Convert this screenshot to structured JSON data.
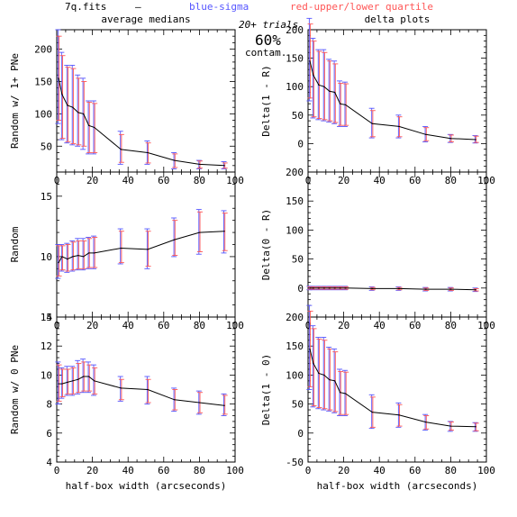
{
  "header": {
    "file": "7q.fits",
    "dash": "—",
    "blue_label": "blue-sigma",
    "red_label": "red-upper/lower quartile",
    "trials": "20+ trials",
    "contam_pct": "60%",
    "contam_word": "contam."
  },
  "colors": {
    "line": "#000000",
    "sigma": "#5555ff",
    "quartile": "#ff5555",
    "frame": "#000000"
  },
  "chart_data": [
    {
      "type": "line",
      "panel": "left-top",
      "title": "average medians",
      "xlabel": "",
      "ylabel": "Random w/ 1+ PNe",
      "xlim": [
        0,
        100
      ],
      "ylim": [
        10,
        230
      ],
      "xticks": [
        0,
        20,
        40,
        60,
        80,
        100
      ],
      "yticks": [
        50,
        100,
        150,
        200
      ],
      "x": [
        1,
        3,
        6,
        9,
        12,
        15,
        18,
        21,
        36,
        51,
        66,
        80,
        94
      ],
      "y": [
        155,
        130,
        113,
        110,
        102,
        100,
        82,
        79,
        45,
        40,
        28,
        22,
        20
      ],
      "sigma": [
        [
          85,
          230
        ],
        [
          60,
          195
        ],
        [
          55,
          175
        ],
        [
          52,
          175
        ],
        [
          50,
          160
        ],
        [
          45,
          155
        ],
        [
          38,
          120
        ],
        [
          38,
          120
        ],
        [
          22,
          73
        ],
        [
          22,
          58
        ],
        [
          15,
          40
        ],
        [
          15,
          28
        ],
        [
          15,
          26
        ]
      ],
      "quartile": [
        [
          90,
          220
        ],
        [
          62,
          190
        ],
        [
          57,
          172
        ],
        [
          54,
          170
        ],
        [
          52,
          155
        ],
        [
          50,
          150
        ],
        [
          40,
          118
        ],
        [
          40,
          116
        ],
        [
          25,
          68
        ],
        [
          24,
          55
        ],
        [
          17,
          38
        ],
        [
          16,
          27
        ],
        [
          16,
          24
        ]
      ]
    },
    {
      "type": "line",
      "panel": "right-top",
      "title": "delta plots",
      "xlabel": "",
      "ylabel": "Delta(1 - R)",
      "xlim": [
        0,
        100
      ],
      "ylim": [
        -50,
        200
      ],
      "xticks": [
        0,
        20,
        40,
        60,
        80,
        100
      ],
      "yticks": [
        0,
        50,
        100,
        150,
        200
      ],
      "x": [
        1,
        3,
        6,
        9,
        12,
        15,
        18,
        21,
        36,
        51,
        66,
        80,
        94
      ],
      "y": [
        145,
        120,
        103,
        100,
        92,
        90,
        70,
        68,
        35,
        30,
        16,
        9,
        7
      ],
      "sigma": [
        [
          75,
          220
        ],
        [
          45,
          185
        ],
        [
          42,
          165
        ],
        [
          40,
          165
        ],
        [
          38,
          148
        ],
        [
          35,
          145
        ],
        [
          30,
          110
        ],
        [
          30,
          108
        ],
        [
          10,
          62
        ],
        [
          10,
          50
        ],
        [
          3,
          30
        ],
        [
          2,
          16
        ],
        [
          1,
          14
        ]
      ],
      "quartile": [
        [
          80,
          210
        ],
        [
          47,
          180
        ],
        [
          44,
          162
        ],
        [
          42,
          160
        ],
        [
          40,
          145
        ],
        [
          37,
          140
        ],
        [
          32,
          106
        ],
        [
          32,
          105
        ],
        [
          12,
          58
        ],
        [
          12,
          47
        ],
        [
          5,
          28
        ],
        [
          3,
          15
        ],
        [
          2,
          13
        ]
      ]
    },
    {
      "type": "line",
      "panel": "left-middle",
      "title": "",
      "xlabel": "",
      "ylabel": "Random",
      "xlim": [
        0,
        100
      ],
      "ylim": [
        5,
        17
      ],
      "xticks": [
        0,
        20,
        40,
        60,
        80,
        100
      ],
      "yticks": [
        5,
        10,
        15
      ],
      "x": [
        1,
        3,
        6,
        9,
        12,
        15,
        18,
        21,
        36,
        51,
        66,
        80,
        94
      ],
      "y": [
        9.5,
        10.0,
        9.8,
        10.0,
        10.1,
        10.0,
        10.3,
        10.3,
        10.7,
        10.6,
        11.4,
        12.0,
        12.1
      ],
      "sigma": [
        [
          8.2,
          11.0
        ],
        [
          8.8,
          11.0
        ],
        [
          8.7,
          11.1
        ],
        [
          8.8,
          11.3
        ],
        [
          8.9,
          11.5
        ],
        [
          8.9,
          11.5
        ],
        [
          9.0,
          11.6
        ],
        [
          9.0,
          11.7
        ],
        [
          9.4,
          12.3
        ],
        [
          9.0,
          12.3
        ],
        [
          10.0,
          13.2
        ],
        [
          10.2,
          13.9
        ],
        [
          10.3,
          13.8
        ]
      ],
      "quartile": [
        [
          8.4,
          10.9
        ],
        [
          8.9,
          10.9
        ],
        [
          8.8,
          11.0
        ],
        [
          8.9,
          11.2
        ],
        [
          9.0,
          11.3
        ],
        [
          9.0,
          11.3
        ],
        [
          9.1,
          11.5
        ],
        [
          9.1,
          11.6
        ],
        [
          9.5,
          12.1
        ],
        [
          9.2,
          12.1
        ],
        [
          10.1,
          13.0
        ],
        [
          10.4,
          13.7
        ],
        [
          10.5,
          13.6
        ]
      ]
    },
    {
      "type": "line",
      "panel": "right-middle",
      "title": "",
      "xlabel": "",
      "ylabel": "Delta(0 - R)",
      "xlim": [
        0,
        100
      ],
      "ylim": [
        -50,
        200
      ],
      "xticks": [
        0,
        20,
        40,
        60,
        80,
        100
      ],
      "yticks": [
        0,
        50,
        100,
        150,
        200
      ],
      "x": [
        1,
        3,
        6,
        9,
        12,
        15,
        18,
        21,
        36,
        51,
        66,
        80,
        94
      ],
      "y": [
        0,
        0,
        0,
        0,
        0,
        0,
        0,
        0,
        -1,
        -1,
        -2,
        -2,
        -3
      ],
      "sigma": [
        [
          -3,
          3
        ],
        [
          -3,
          3
        ],
        [
          -3,
          3
        ],
        [
          -3,
          3
        ],
        [
          -3,
          3
        ],
        [
          -3,
          3
        ],
        [
          -3,
          3
        ],
        [
          -3,
          3
        ],
        [
          -4,
          2
        ],
        [
          -4,
          2
        ],
        [
          -5,
          1
        ],
        [
          -5,
          1
        ],
        [
          -6,
          0
        ]
      ],
      "quartile": [
        [
          -2,
          2
        ],
        [
          -2,
          2
        ],
        [
          -2,
          2
        ],
        [
          -2,
          2
        ],
        [
          -2,
          2
        ],
        [
          -2,
          2
        ],
        [
          -2,
          2
        ],
        [
          -2,
          2
        ],
        [
          -3,
          1
        ],
        [
          -3,
          1
        ],
        [
          -4,
          0
        ],
        [
          -4,
          0
        ],
        [
          -5,
          -1
        ]
      ]
    },
    {
      "type": "line",
      "panel": "left-bottom",
      "title": "",
      "xlabel": "half-box width (arcseconds)",
      "ylabel": "Random w/ 0 PNe",
      "xlim": [
        0,
        100
      ],
      "ylim": [
        4,
        14
      ],
      "xticks": [
        0,
        20,
        40,
        60,
        80,
        100
      ],
      "yticks": [
        4,
        6,
        8,
        10,
        12,
        14
      ],
      "x": [
        1,
        3,
        6,
        9,
        12,
        15,
        18,
        21,
        36,
        51,
        66,
        80,
        94
      ],
      "y": [
        9.4,
        9.4,
        9.5,
        9.6,
        9.7,
        9.9,
        9.9,
        9.6,
        9.1,
        9.0,
        8.3,
        8.1,
        7.9
      ],
      "sigma": [
        [
          8.0,
          10.9
        ],
        [
          8.4,
          10.5
        ],
        [
          8.6,
          10.6
        ],
        [
          8.6,
          10.6
        ],
        [
          8.7,
          11.0
        ],
        [
          8.8,
          11.1
        ],
        [
          8.8,
          10.9
        ],
        [
          8.6,
          10.7
        ],
        [
          8.2,
          9.9
        ],
        [
          8.0,
          9.9
        ],
        [
          7.5,
          9.1
        ],
        [
          7.3,
          8.9
        ],
        [
          7.2,
          8.7
        ]
      ],
      "quartile": [
        [
          8.2,
          10.7
        ],
        [
          8.5,
          10.4
        ],
        [
          8.7,
          10.4
        ],
        [
          8.7,
          10.5
        ],
        [
          8.8,
          10.8
        ],
        [
          8.9,
          10.9
        ],
        [
          8.9,
          10.7
        ],
        [
          8.7,
          10.5
        ],
        [
          8.3,
          9.7
        ],
        [
          8.1,
          9.7
        ],
        [
          7.6,
          9.0
        ],
        [
          7.4,
          8.8
        ],
        [
          7.3,
          8.6
        ]
      ]
    },
    {
      "type": "line",
      "panel": "right-bottom",
      "title": "",
      "xlabel": "half-box width (arcseconds)",
      "ylabel": "Delta(1 - 0)",
      "xlim": [
        0,
        100
      ],
      "ylim": [
        -50,
        200
      ],
      "xticks": [
        0,
        20,
        40,
        60,
        80,
        100
      ],
      "yticks": [
        -50,
        0,
        50,
        100,
        150,
        200
      ],
      "x": [
        1,
        3,
        6,
        9,
        12,
        15,
        18,
        21,
        36,
        51,
        66,
        80,
        94
      ],
      "y": [
        145,
        120,
        103,
        100,
        92,
        90,
        70,
        68,
        36,
        31,
        19,
        12,
        11
      ],
      "sigma": [
        [
          75,
          220
        ],
        [
          45,
          185
        ],
        [
          42,
          165
        ],
        [
          40,
          165
        ],
        [
          38,
          148
        ],
        [
          35,
          145
        ],
        [
          30,
          110
        ],
        [
          30,
          108
        ],
        [
          8,
          66
        ],
        [
          10,
          52
        ],
        [
          5,
          32
        ],
        [
          3,
          20
        ],
        [
          3,
          18
        ]
      ],
      "quartile": [
        [
          80,
          210
        ],
        [
          47,
          180
        ],
        [
          44,
          162
        ],
        [
          42,
          160
        ],
        [
          40,
          145
        ],
        [
          37,
          140
        ],
        [
          32,
          106
        ],
        [
          32,
          105
        ],
        [
          10,
          62
        ],
        [
          12,
          49
        ],
        [
          7,
          30
        ],
        [
          5,
          19
        ],
        [
          4,
          17
        ]
      ]
    }
  ]
}
